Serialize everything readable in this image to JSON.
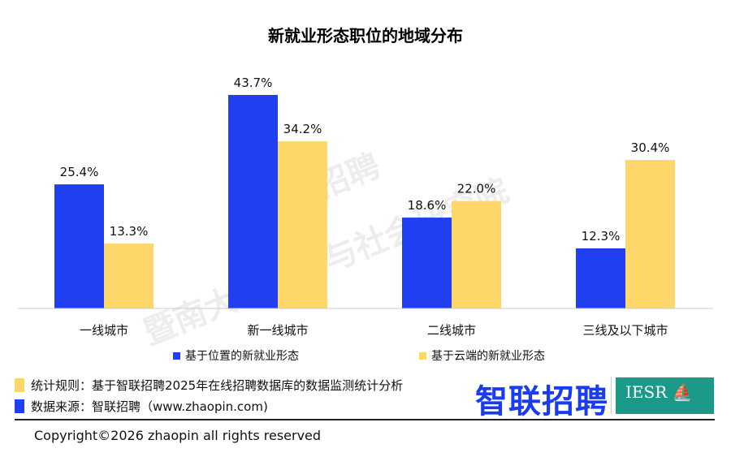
{
  "chart_data": {
    "type": "bar",
    "title": "新就业形态职位的地域分布",
    "categories": [
      "一线城市",
      "新一线城市",
      "二线城市",
      "三线及以下城市"
    ],
    "series": [
      {
        "name": "基于位置的新就业形态",
        "color": "#1f3ff0",
        "values": [
          25.4,
          43.7,
          18.6,
          12.3
        ],
        "labels": [
          "25.4%",
          "43.7%",
          "18.6%",
          "12.3%"
        ]
      },
      {
        "name": "基于云端的新就业形态",
        "color": "#fdd769",
        "values": [
          13.3,
          34.2,
          22.0,
          30.4
        ],
        "labels": [
          "13.3%",
          "34.2%",
          "22.0%",
          "30.4%"
        ]
      }
    ],
    "xlabel": "",
    "ylabel": "",
    "ylim": [
      0,
      45
    ],
    "grid": false,
    "legend": "bottom"
  },
  "watermark": [
    "智联招聘",
    "暨南大学经济与社会研究院"
  ],
  "notes": {
    "rule": "统计规则：基于智联招聘2025年在线招聘数据库的数据监测统计分析",
    "source": "数据来源：智联招聘（www.zhaopin.com)"
  },
  "logos": {
    "zhaopin": "智联招聘",
    "iesr": "IESR"
  },
  "copyright": "Copyright©2026 zhaopin all rights reserved"
}
